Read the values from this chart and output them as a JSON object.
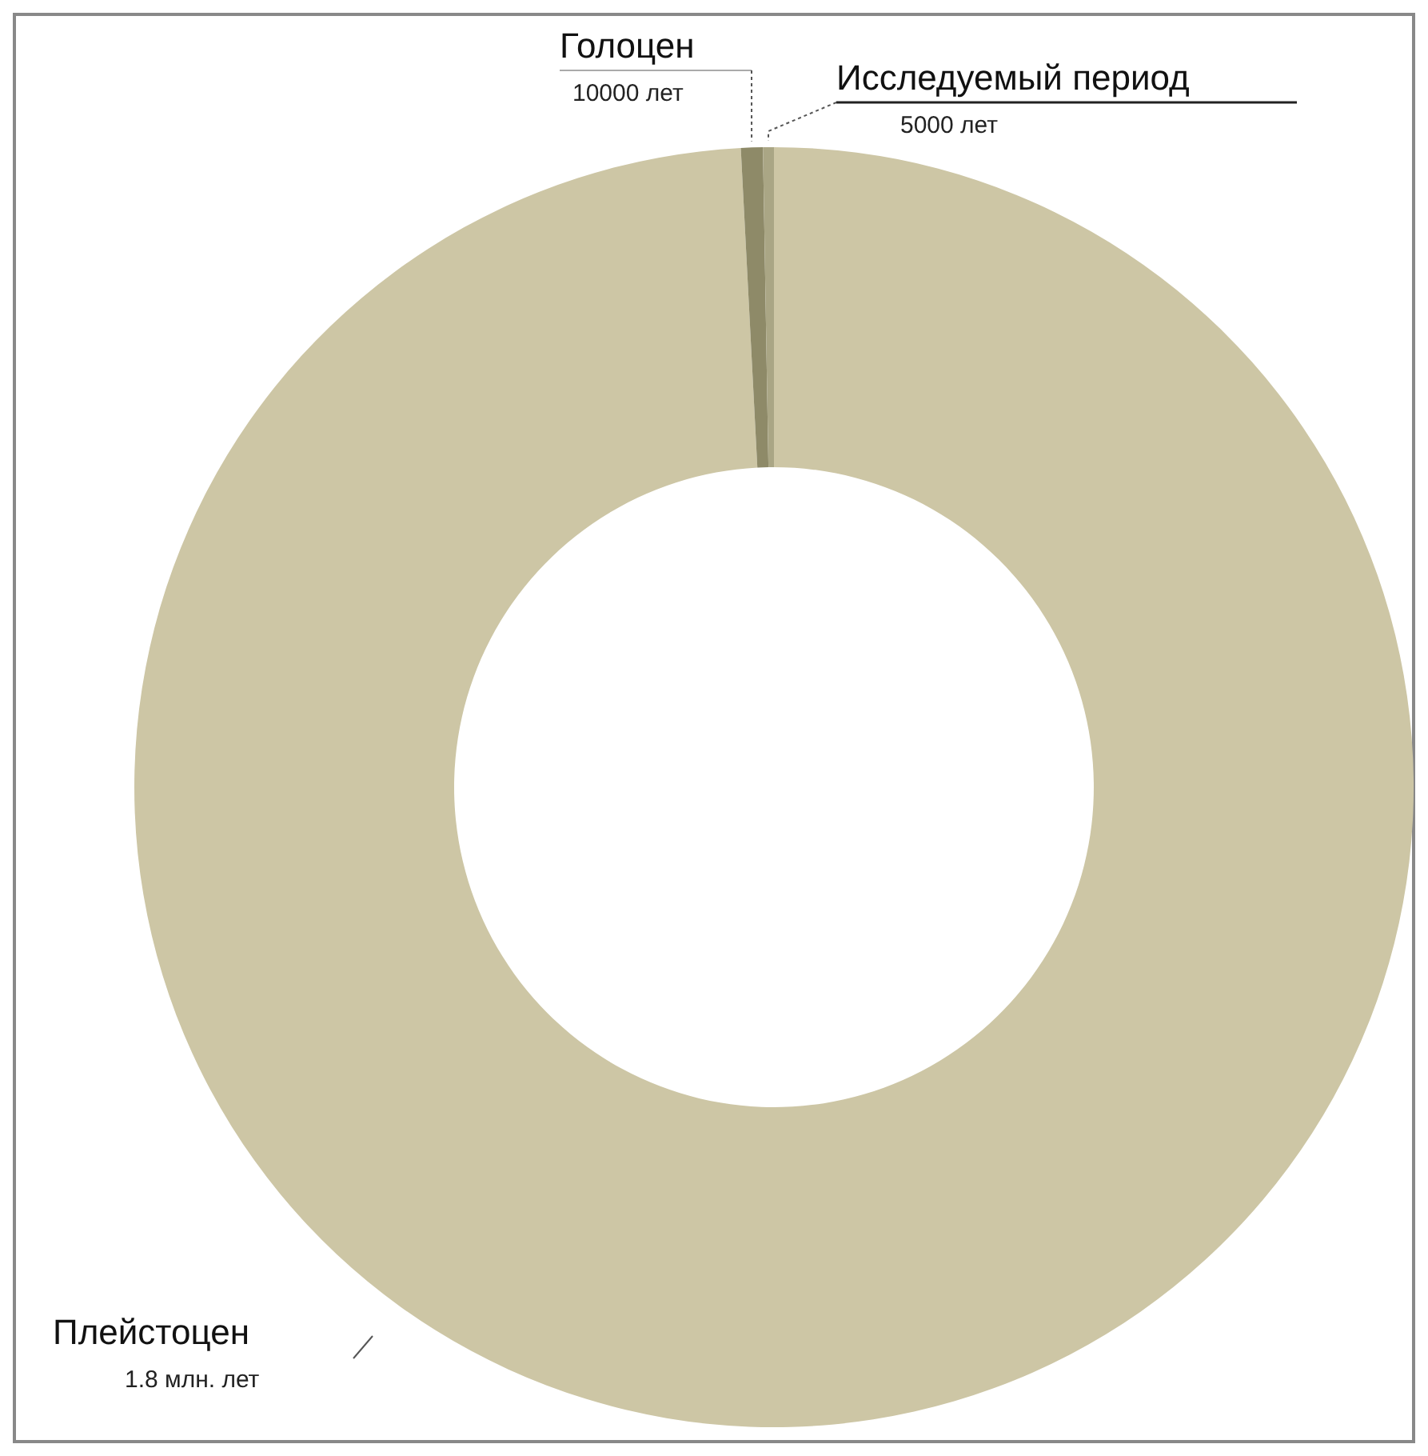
{
  "chart_data": {
    "type": "donut",
    "categories": [
      "Плейстоцен",
      "Голоцен",
      "Исследуемый период"
    ],
    "values": [
      99.174,
      0.551,
      0.275
    ],
    "annotations": [
      "1.8 млн. лет",
      "10000 лет",
      "5000 лет"
    ],
    "colors": [
      "#cdc6a5",
      "#8e8a68",
      "#aaa685"
    ]
  }
}
